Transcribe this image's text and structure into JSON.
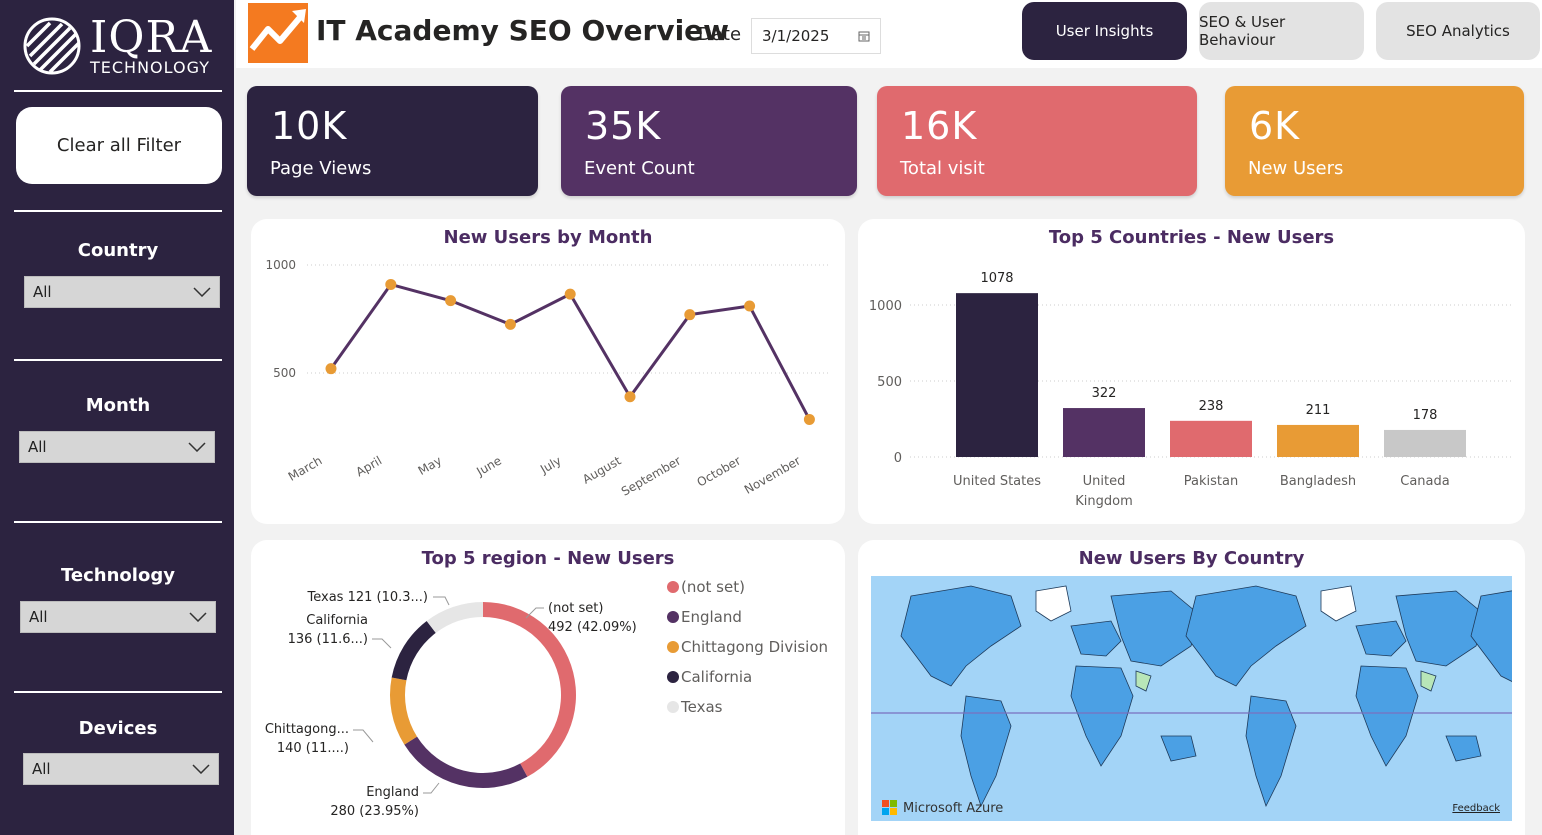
{
  "brand": {
    "name": "IQRA",
    "sub": "TECHNOLOGY"
  },
  "sidebar": {
    "clear_label": "Clear all Filter",
    "filters": [
      {
        "title": "Country",
        "value": "All"
      },
      {
        "title": "Month",
        "value": "All"
      },
      {
        "title": "Technology",
        "value": "All"
      },
      {
        "title": "Devices",
        "value": "All"
      }
    ]
  },
  "header": {
    "title": "IT Academy SEO Overview",
    "date_label": "Date",
    "date_value": "3/1/2025",
    "nav": [
      "User Insights",
      "SEO & User Behaviour",
      "SEO Analytics"
    ]
  },
  "kpis": [
    {
      "value": "10K",
      "label": "Page Views",
      "color": "#2c2340"
    },
    {
      "value": "35K",
      "label": "Event Count",
      "color": "#543264"
    },
    {
      "value": "16K",
      "label": "Total visit",
      "color": "#e06a6e"
    },
    {
      "value": "6K",
      "label": "New Users",
      "color": "#e89b35"
    }
  ],
  "colors": {
    "dark": "#2c2340",
    "purple": "#543264",
    "coral": "#e06a6e",
    "orange": "#e89b35",
    "grey": "#c8c8c8"
  },
  "chart_data": [
    {
      "type": "line",
      "title": "New Users by Month",
      "categories": [
        "March",
        "April",
        "May",
        "June",
        "July",
        "August",
        "September",
        "October",
        "November"
      ],
      "values": [
        520,
        910,
        835,
        725,
        865,
        390,
        770,
        810,
        285
      ],
      "yticks": [
        "500",
        "1000"
      ],
      "ylim": [
        0,
        1000
      ]
    },
    {
      "type": "bar",
      "title": "Top 5 Countries - New Users",
      "categories": [
        "United States",
        "United Kingdom",
        "Pakistan",
        "Bangladesh",
        "Canada"
      ],
      "category_lines": [
        [
          "United States"
        ],
        [
          "United",
          "Kingdom"
        ],
        [
          "Pakistan"
        ],
        [
          "Bangladesh"
        ],
        [
          "Canada"
        ]
      ],
      "values": [
        1078,
        322,
        238,
        211,
        178
      ],
      "labels": [
        "1078",
        "322",
        "238",
        "211",
        "178"
      ],
      "yticks": [
        "0",
        "500",
        "1000"
      ],
      "ylim": [
        0,
        1000
      ]
    },
    {
      "type": "pie",
      "title": "Top 5 region - New Users",
      "categories": [
        "(not set)",
        "England",
        "Chittagong Division",
        "California",
        "Texas"
      ],
      "values": [
        492,
        280,
        140,
        136,
        121
      ],
      "data_labels": [
        [
          "(not set)",
          "492 (42.09%)"
        ],
        [
          "England",
          "280 (23.95%)"
        ],
        [
          "Chittagong...",
          "140 (11....)"
        ],
        [
          "California",
          "136 (11.6...)"
        ],
        [
          "Texas 121 (10.3...)"
        ]
      ]
    }
  ],
  "map": {
    "title": "New Users By Country",
    "provider": "Microsoft Azure",
    "feedback": "Feedback"
  }
}
